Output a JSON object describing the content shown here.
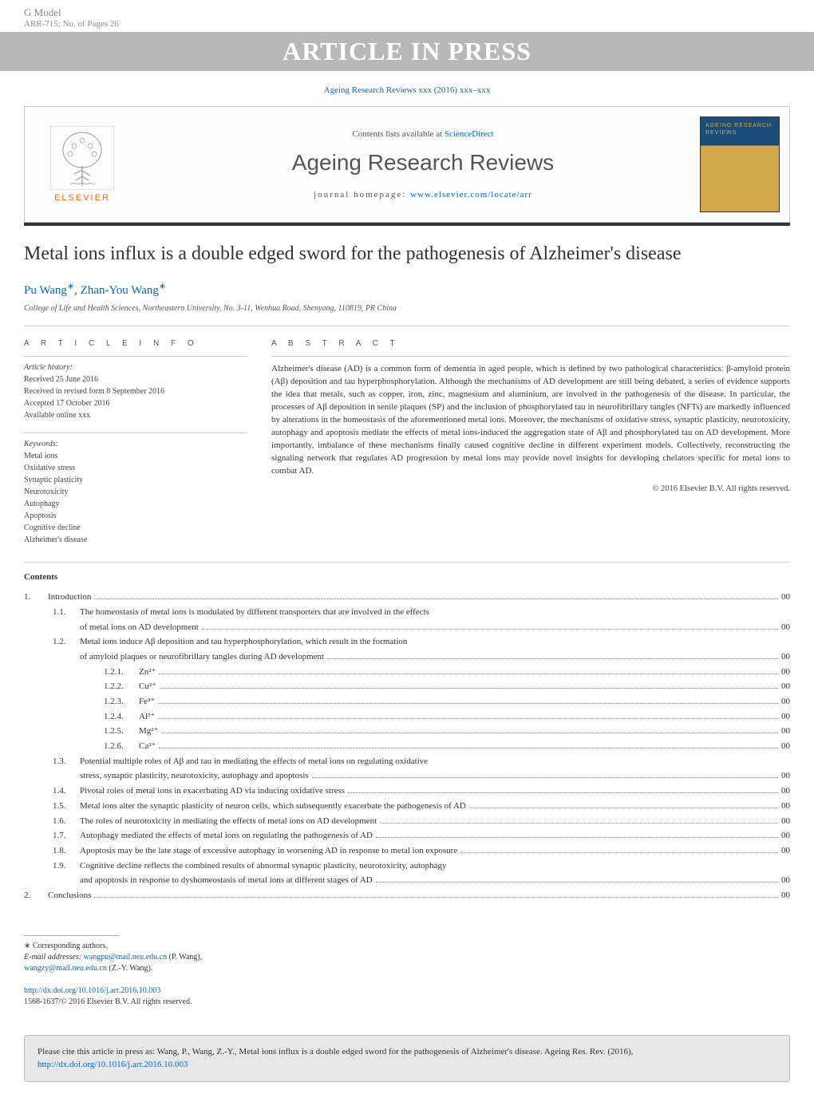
{
  "top": {
    "g_model": "G Model",
    "arr_ref": "ARR-715;   No. of Pages 26",
    "press_banner": "ARTICLE IN PRESS"
  },
  "header": {
    "journal_ref": "Ageing Research Reviews xxx (2016) xxx–xxx",
    "contents_line_prefix": "Contents lists available at ",
    "contents_line_link": "ScienceDirect",
    "journal_title": "Ageing Research Reviews",
    "homepage_prefix": "journal homepage: ",
    "homepage_url": "www.elsevier.com/locate/arr",
    "elsevier": "ELSEVIER",
    "cover_title": "AGEING RESEARCH REVIEWS"
  },
  "article": {
    "title": "Metal ions influx is a double edged sword for the pathogenesis of Alzheimer's disease",
    "authors": [
      {
        "name": "Pu Wang",
        "corr": true
      },
      {
        "name": "Zhan-You Wang",
        "corr": true
      }
    ],
    "author_sep": ", ",
    "affiliation": "College of Life and Health Sciences, Northeastern University, No. 3-11, Wenhua Road, Shenyang, 110819, PR China"
  },
  "info": {
    "heading": "A R T I C L E   I N F O",
    "history_label": "Article history:",
    "history": [
      "Received 25 June 2016",
      "Received in revised form 8 September 2016",
      "Accepted 17 October 2016",
      "Available online xxx"
    ],
    "keywords_label": "Keywords:",
    "keywords": [
      "Metal ions",
      "Oxidative stress",
      "Synaptic plasticity",
      "Neurotoxicity",
      "Autophagy",
      "Apoptosis",
      "Cognitive decline",
      "Alzheimer's disease"
    ]
  },
  "abstract": {
    "heading": "A B S T R A C T",
    "text": "Alzheimer's disease (AD) is a common form of dementia in aged people, which is defined by two pathological characteristics: β-amyloid protein (Aβ) deposition and tau hyperphosphorylation. Although the mechanisms of AD development are still being debated, a series of evidence supports the idea that metals, such as copper, iron, zinc, magnesium and aluminium, are involved in the pathogenesis of the disease. In particular, the processes of Aβ deposition in senile plaques (SP) and the inclusion of phosphorylated tau in neurofibrillary tangles (NFTs) are markedly influenced by alterations in the homeostasis of the aforementioned metal ions. Moreover, the mechanisms of oxidative stress, synaptic plasticity, neurotoxicity, autophagy and apoptosis mediate the effects of metal ions-induced the aggregation state of Aβ and phosphorylated tau on AD development. More importantly, imbalance of these mechanisms finally caused cognitive decline in different experiment models. Collectively, reconstructing the signaling network that regulates AD progression by metal ions may provide novel insights for developing chelators specific for metal ions to combat AD.",
    "copyright": "© 2016 Elsevier B.V. All rights reserved."
  },
  "contents": {
    "title": "Contents",
    "items": [
      {
        "level": 0,
        "num": "1.",
        "text": "Introduction",
        "page": "00"
      },
      {
        "level": 1,
        "num": "1.1.",
        "text": "The homeostasis of metal ions is modulated by different transporters that are involved in the effects",
        "cont": "of metal ions on AD development",
        "page": "00"
      },
      {
        "level": 1,
        "num": "1.2.",
        "text": "Metal ions induce Aβ deposition and tau hyperphosphorylation, which result in the formation",
        "cont": "of amyloid plaques or neurofibrillary tangles during AD development",
        "page": "00"
      },
      {
        "level": 2,
        "num": "1.2.1.",
        "text": "Zn²⁺",
        "page": "00"
      },
      {
        "level": 2,
        "num": "1.2.2.",
        "text": "Cu²⁺",
        "page": "00"
      },
      {
        "level": 2,
        "num": "1.2.3.",
        "text": "Fe³⁺",
        "page": "00"
      },
      {
        "level": 2,
        "num": "1.2.4.",
        "text": "Al³⁺",
        "page": "00"
      },
      {
        "level": 2,
        "num": "1.2.5.",
        "text": "Mg²⁺",
        "page": "00"
      },
      {
        "level": 2,
        "num": "1.2.6.",
        "text": "Ca²⁺",
        "page": "00"
      },
      {
        "level": 1,
        "num": "1.3.",
        "text": "Potential multiple roles of Aβ and tau in mediating the effects of metal ions on regulating oxidative",
        "cont": "stress, synaptic plasticity, neurotoxicity, autophagy and apoptosis",
        "page": "00"
      },
      {
        "level": 1,
        "num": "1.4.",
        "text": "Pivotal roles of metal ions in exacerbating AD via inducing oxidative stress",
        "page": "00"
      },
      {
        "level": 1,
        "num": "1.5.",
        "text": "Metal ions alter the synaptic plasticity of neuron cells, which subsequently exacerbate the pathogenesis of AD",
        "page": "00"
      },
      {
        "level": 1,
        "num": "1.6.",
        "text": "The roles of neurotoxicity in mediating the effects of metal ions on AD development",
        "page": "00"
      },
      {
        "level": 1,
        "num": "1.7.",
        "text": "Autophagy mediated the effects of metal ions on regulating the pathogenesis of AD",
        "page": "00"
      },
      {
        "level": 1,
        "num": "1.8.",
        "text": "Apoptosis may be the late stage of excessive autophagy in worsening AD in response to metal ion exposure",
        "page": "00"
      },
      {
        "level": 1,
        "num": "1.9.",
        "text": "Cognitive decline reflects the combined results of abnormal synaptic plasticity, neurotoxicity, autophagy",
        "cont": "and apoptosis in response to dyshomeostasis of metal ions at different stages of AD",
        "page": "00"
      },
      {
        "level": 0,
        "num": "2.",
        "text": "Conclusions",
        "page": "00"
      }
    ]
  },
  "footer": {
    "corr_label": "∗ Corresponding authors.",
    "email_label": "E-mail addresses: ",
    "emails": [
      {
        "addr": "wangpu@mail.neu.edu.cn",
        "who": " (P. Wang),"
      },
      {
        "addr": "wangzy@mail.neu.edu.cn",
        "who": " (Z.-Y. Wang)."
      }
    ],
    "doi": "http://dx.doi.org/10.1016/j.arr.2016.10.003",
    "issn": "1568-1637/© 2016 Elsevier B.V. All rights reserved."
  },
  "cite_box": {
    "text_prefix": "Please cite this article in press as: Wang, P., Wang, Z.-Y., Metal ions influx is a double edged sword for the pathogenesis of Alzheimer's disease. Ageing Res. Rev. (2016), ",
    "link": "http://dx.doi.org/10.1016/j.arr.2016.10.003"
  },
  "style": {
    "link_color": "#0066cc",
    "press_bg": "#b8b8b8",
    "press_fg": "#ffffff",
    "border_color": "#cccccc"
  }
}
